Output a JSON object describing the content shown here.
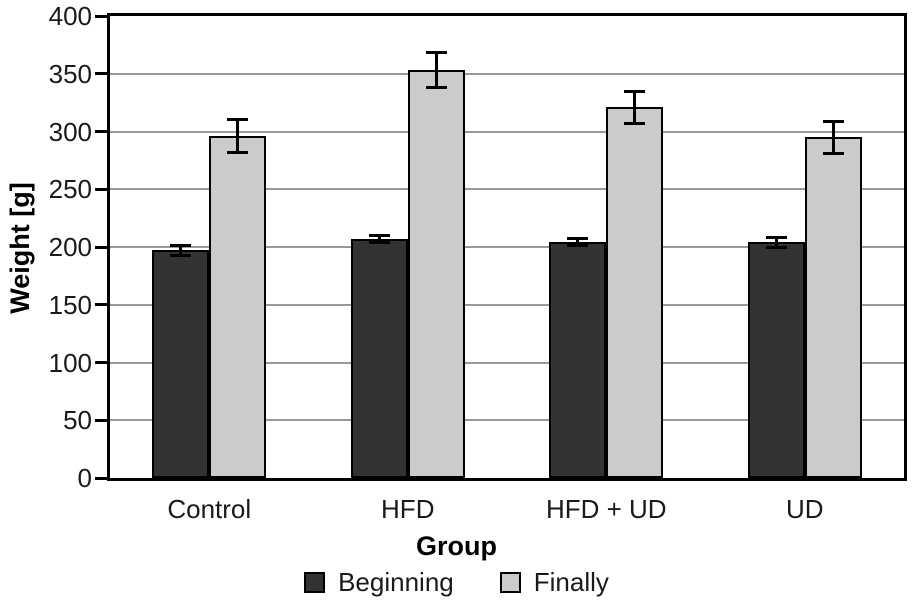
{
  "chart_data": {
    "type": "bar",
    "title": "",
    "xlabel": "Group",
    "ylabel": "Weight [g]",
    "ylim": [
      0,
      400
    ],
    "ytick_step": 50,
    "yticks": [
      0,
      50,
      100,
      150,
      200,
      250,
      300,
      350,
      400
    ],
    "grid": true,
    "legend_position": "bottom",
    "categories": [
      "Control",
      "HFD",
      "HFD + UD",
      "UD"
    ],
    "series": [
      {
        "name": "Beginning",
        "color": "#333333",
        "values": [
          197,
          207,
          204,
          204
        ],
        "errors": [
          4,
          3,
          3,
          4
        ]
      },
      {
        "name": "Finally",
        "color": "#cbcbcb",
        "values": [
          296,
          353,
          321,
          295
        ],
        "errors": [
          14,
          15,
          14,
          14
        ]
      }
    ],
    "colors": {
      "axis": "#000000",
      "gridline": "#9a9a9a",
      "error_bar": "#000000",
      "background": "#ffffff"
    }
  }
}
